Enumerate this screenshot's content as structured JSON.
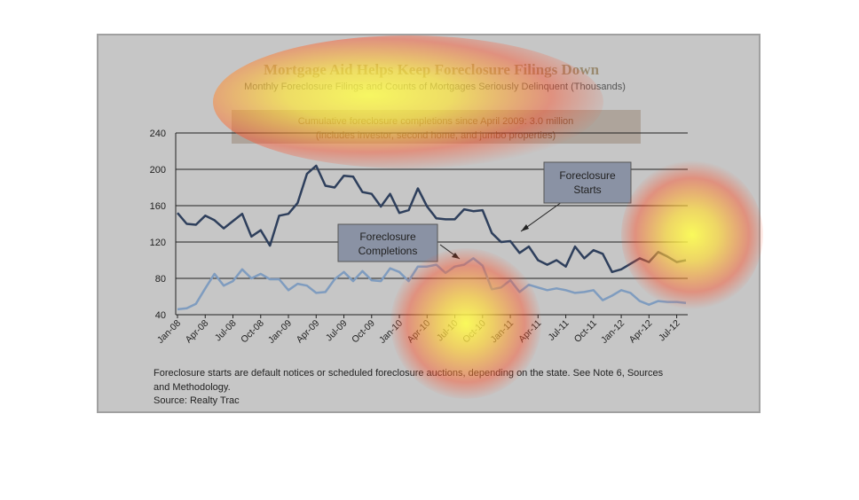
{
  "chart_data": {
    "type": "line",
    "title": "Mortgage Aid Helps Keep Foreclosure Filings Down",
    "subtitle": "Monthly Foreclosure Filings and Counts of Mortgages Seriously Delinquent (Thousands)",
    "annotation_box": [
      "Cumulative foreclosure completions since April 2009: 3.0 million",
      "(includes investor, second home, and jumbo properties)"
    ],
    "y_ticks": [
      "240",
      "200",
      "160",
      "120",
      "80",
      "40"
    ],
    "y_tick_values": [
      240,
      200,
      160,
      120,
      80,
      40
    ],
    "ylim": [
      40,
      240
    ],
    "x_ticks": [
      "Jan-08",
      "Apr-08",
      "Jul-08",
      "Oct-08",
      "Jan-09",
      "Apr-09",
      "Jul-09",
      "Oct-09",
      "Jan-10",
      "Apr-10",
      "Jul-10",
      "Oct-10",
      "Jan-11",
      "Apr-11",
      "Jul-11",
      "Oct-11",
      "Jan-12",
      "Apr-12",
      "Jul-12"
    ],
    "series": [
      {
        "name": "Foreclosure Starts",
        "color": "#2e3f5c",
        "values": [
          152,
          140,
          139,
          149,
          144,
          135,
          143,
          151,
          126,
          133,
          116,
          149,
          151,
          163,
          195,
          204,
          182,
          180,
          193,
          192,
          175,
          173,
          159,
          173,
          152,
          155,
          179,
          159,
          146,
          145,
          145,
          156,
          154,
          155,
          130,
          120,
          121,
          108,
          115,
          100,
          95,
          100,
          93,
          115,
          102,
          111,
          107,
          87,
          90,
          96,
          102,
          98,
          109,
          104,
          98,
          100
        ]
      },
      {
        "name": "Foreclosure Completions",
        "color": "#7f9cbf",
        "values": [
          46,
          47,
          52,
          69,
          85,
          72,
          77,
          90,
          80,
          85,
          79,
          79,
          67,
          74,
          72,
          64,
          65,
          79,
          87,
          77,
          88,
          78,
          77,
          91,
          87,
          77,
          93,
          93,
          95,
          86,
          93,
          95,
          102,
          94,
          68,
          70,
          78,
          65,
          73,
          70,
          67,
          69,
          67,
          64,
          65,
          67,
          56,
          61,
          67,
          64,
          55,
          51,
          55,
          54,
          54,
          53
        ]
      }
    ],
    "callouts": {
      "starts": [
        "Foreclosure",
        "Starts"
      ],
      "completions": [
        "Foreclosure",
        "Completions"
      ]
    },
    "notes": [
      "Foreclosure starts are default notices or scheduled foreclosure auctions, depending on the state. See Note 6, Sources",
      "and Methodology.",
      "Source: Realty Trac"
    ],
    "grid": true,
    "legend": "callouts"
  },
  "colors": {
    "panel_background": "#c6c6c6",
    "gridline": "#222222",
    "heat_hot": "#ffff40",
    "heat_warm": "#ff3c28"
  }
}
